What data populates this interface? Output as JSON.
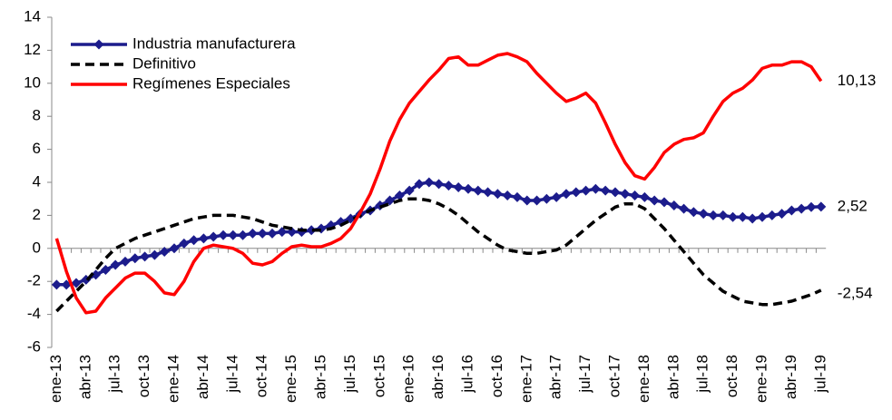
{
  "chart_data": {
    "type": "line",
    "categories": [
      "ene-13",
      null,
      null,
      "abr-13",
      null,
      null,
      "jul-13",
      null,
      null,
      "oct-13",
      null,
      null,
      "ene-14",
      null,
      null,
      "abr-14",
      null,
      null,
      "jul-14",
      null,
      null,
      "oct-14",
      null,
      null,
      "ene-15",
      null,
      null,
      "abr-15",
      null,
      null,
      "jul-15",
      null,
      null,
      "oct-15",
      null,
      null,
      "ene-16",
      null,
      null,
      "abr-16",
      null,
      null,
      "jul-16",
      null,
      null,
      "oct-16",
      null,
      null,
      "ene-17",
      null,
      null,
      "abr-17",
      null,
      null,
      "jul-17",
      null,
      null,
      "oct-17",
      null,
      null,
      "ene-18",
      null,
      null,
      "abr-18",
      null,
      null,
      "jul-18",
      null,
      null,
      "oct-18",
      null,
      null,
      "ene-19",
      null,
      null,
      "abr-19",
      null,
      null,
      "jul-19"
    ],
    "series": [
      {
        "name": "Industria manufacturera",
        "color": "#1c1c8c",
        "marker": "diamond",
        "dash": "solid",
        "end_label": "2,52",
        "values": [
          -2.2,
          -2.2,
          -2.1,
          -1.9,
          -1.6,
          -1.3,
          -1.0,
          -0.8,
          -0.6,
          -0.5,
          -0.4,
          -0.2,
          0.0,
          0.3,
          0.5,
          0.6,
          0.7,
          0.8,
          0.8,
          0.8,
          0.9,
          0.9,
          0.9,
          1.0,
          1.0,
          1.0,
          1.1,
          1.2,
          1.4,
          1.6,
          1.8,
          2.1,
          2.3,
          2.6,
          2.9,
          3.2,
          3.5,
          3.9,
          4.0,
          3.9,
          3.8,
          3.7,
          3.6,
          3.5,
          3.4,
          3.3,
          3.2,
          3.1,
          2.9,
          2.9,
          3.0,
          3.1,
          3.3,
          3.4,
          3.5,
          3.6,
          3.5,
          3.4,
          3.3,
          3.2,
          3.1,
          2.9,
          2.8,
          2.6,
          2.4,
          2.2,
          2.1,
          2.0,
          2.0,
          1.9,
          1.9,
          1.8,
          1.9,
          2.0,
          2.1,
          2.3,
          2.4,
          2.5,
          2.52
        ]
      },
      {
        "name": "Definitivo",
        "color": "#000000",
        "marker": "none",
        "dash": "dashed",
        "end_label": "-2,54",
        "values": [
          -3.8,
          -3.2,
          -2.6,
          -2.0,
          -1.3,
          -0.6,
          0.0,
          0.3,
          0.6,
          0.8,
          1.0,
          1.2,
          1.4,
          1.6,
          1.8,
          1.9,
          2.0,
          2.0,
          2.0,
          1.9,
          1.8,
          1.6,
          1.4,
          1.3,
          1.2,
          1.1,
          1.1,
          1.1,
          1.2,
          1.4,
          1.7,
          2.0,
          2.3,
          2.5,
          2.7,
          2.9,
          3.0,
          3.0,
          2.9,
          2.7,
          2.4,
          2.0,
          1.5,
          1.0,
          0.6,
          0.2,
          -0.1,
          -0.2,
          -0.3,
          -0.3,
          -0.2,
          -0.1,
          0.2,
          0.7,
          1.2,
          1.7,
          2.1,
          2.5,
          2.7,
          2.7,
          2.4,
          1.8,
          1.2,
          0.5,
          -0.2,
          -0.9,
          -1.6,
          -2.1,
          -2.6,
          -2.9,
          -3.2,
          -3.3,
          -3.4,
          -3.4,
          -3.3,
          -3.2,
          -3.0,
          -2.8,
          -2.54
        ]
      },
      {
        "name": "Regímenes Especiales",
        "color": "#ff0000",
        "marker": "none",
        "dash": "solid",
        "end_label": "10,13",
        "values": [
          0.6,
          -1.4,
          -3.0,
          -3.9,
          -3.8,
          -3.0,
          -2.4,
          -1.8,
          -1.5,
          -1.5,
          -2.0,
          -2.7,
          -2.8,
          -2.0,
          -0.8,
          0.0,
          0.2,
          0.1,
          0.0,
          -0.3,
          -0.9,
          -1.0,
          -0.8,
          -0.3,
          0.1,
          0.2,
          0.1,
          0.1,
          0.3,
          0.6,
          1.2,
          2.2,
          3.3,
          4.8,
          6.5,
          7.8,
          8.8,
          9.5,
          10.2,
          10.8,
          11.5,
          11.6,
          11.1,
          11.1,
          11.4,
          11.7,
          11.8,
          11.6,
          11.3,
          10.6,
          10.0,
          9.4,
          8.9,
          9.1,
          9.4,
          8.8,
          7.6,
          6.3,
          5.2,
          4.4,
          4.2,
          4.9,
          5.8,
          6.3,
          6.6,
          6.7,
          7.0,
          8.0,
          8.9,
          9.4,
          9.7,
          10.2,
          10.9,
          11.1,
          11.1,
          11.3,
          11.3,
          11.0,
          10.13
        ]
      }
    ],
    "ylim": [
      -6,
      14
    ],
    "yticks": [
      -6,
      -4,
      -2,
      0,
      2,
      4,
      6,
      8,
      10,
      12,
      14
    ],
    "grid": false,
    "legend": "top-left"
  }
}
